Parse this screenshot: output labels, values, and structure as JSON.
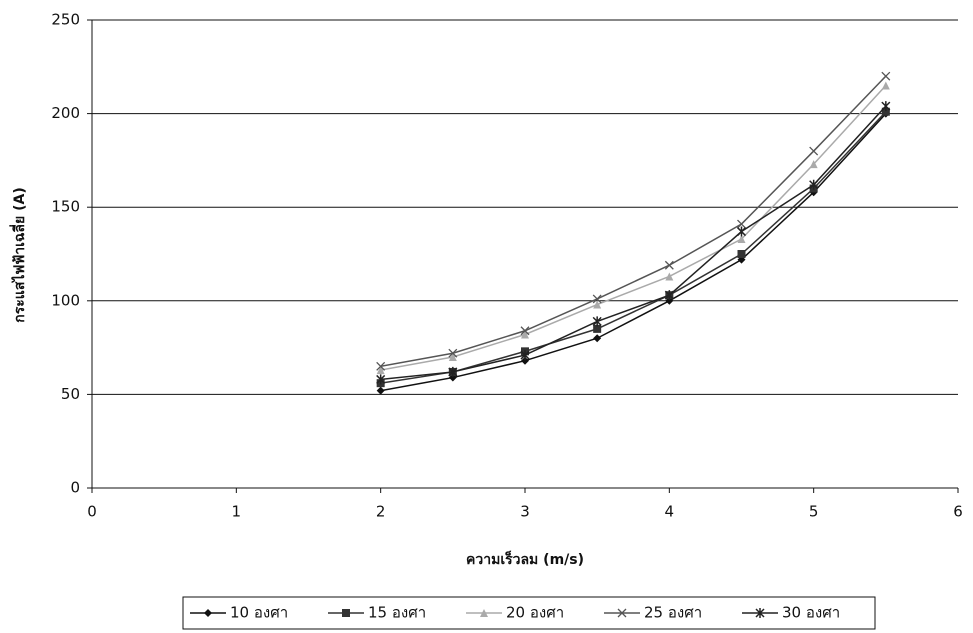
{
  "chart_data": {
    "type": "line",
    "x_label": "ความเร็วลม (m/s)",
    "y_label": "กระแสไฟฟ้าเฉลี่ย (A)",
    "x": [
      2,
      2.5,
      3,
      3.5,
      4,
      4.5,
      5,
      5.5
    ],
    "xlim": [
      0,
      6
    ],
    "xticks": [
      0,
      1,
      2,
      3,
      4,
      5,
      6
    ],
    "ylim": [
      0,
      250
    ],
    "yticks": [
      0,
      50,
      100,
      150,
      200,
      250
    ],
    "grid": true,
    "series": [
      {
        "name": "10 องศา",
        "color": "#111111",
        "marker": "diamond",
        "values": [
          52,
          59,
          68,
          80,
          100,
          122,
          158,
          200
        ]
      },
      {
        "name": "15 องศา",
        "color": "#333333",
        "marker": "square",
        "values": [
          56,
          62,
          73,
          85,
          103,
          125,
          160,
          201
        ]
      },
      {
        "name": "20 องศา",
        "color": "#aaaaaa",
        "marker": "triangle",
        "values": [
          63,
          70,
          82,
          98,
          113,
          133,
          173,
          215
        ]
      },
      {
        "name": "25 องศา",
        "color": "#555555",
        "marker": "x",
        "values": [
          65,
          72,
          84,
          101,
          119,
          141,
          180,
          220
        ]
      },
      {
        "name": "30 องศา",
        "color": "#222222",
        "marker": "star",
        "values": [
          58,
          62,
          71,
          89,
          103,
          137,
          162,
          204
        ]
      }
    ]
  }
}
